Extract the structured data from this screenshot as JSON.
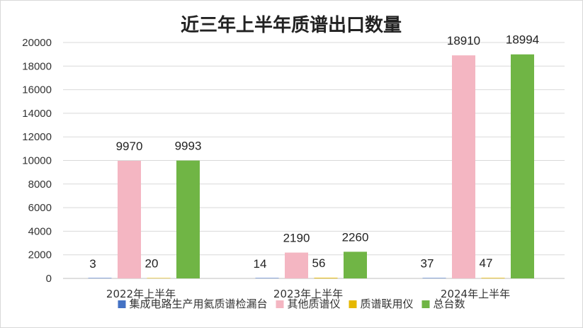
{
  "chart_data": {
    "type": "bar",
    "title": "近三年上半年质谱出口数量",
    "categories": [
      "2022年上半年",
      "2023年上半年",
      "2024年上半年"
    ],
    "series": [
      {
        "name": "集成电路生产用氦质谱检漏台",
        "color": "#4472C4",
        "values": [
          3,
          14,
          37
        ]
      },
      {
        "name": "其他质谱仪",
        "color": "#F4B6C2",
        "values": [
          9970,
          2190,
          18910
        ]
      },
      {
        "name": "质谱联用仪",
        "color": "#E6B800",
        "values": [
          20,
          56,
          47
        ]
      },
      {
        "name": "总台数",
        "color": "#70B545",
        "values": [
          9993,
          2260,
          18994
        ]
      }
    ],
    "ylim": [
      0,
      20000
    ],
    "yticks": [
      0,
      2000,
      4000,
      6000,
      8000,
      10000,
      12000,
      14000,
      16000,
      18000,
      20000
    ],
    "xlabel": "",
    "ylabel": "",
    "grid": true,
    "legend_position": "bottom"
  }
}
